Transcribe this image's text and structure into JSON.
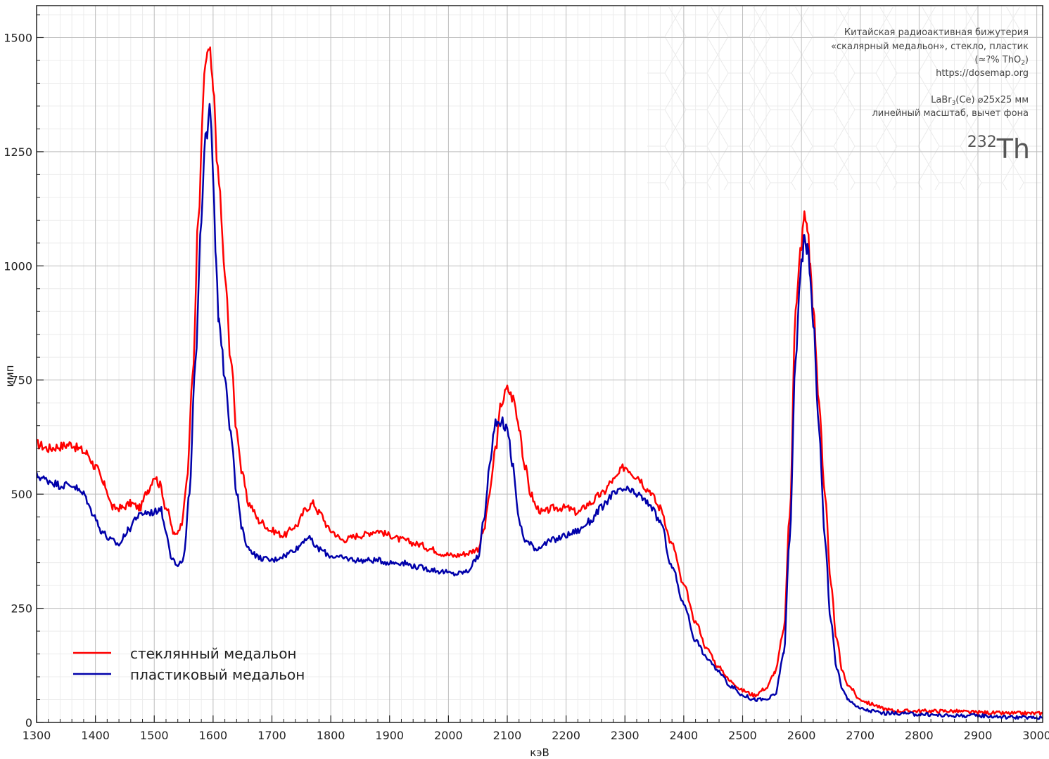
{
  "chart_data": {
    "type": "line",
    "xlabel": "кэВ",
    "ylabel": "имп",
    "xlim": [
      1300,
      3010
    ],
    "ylim": [
      0,
      1570
    ],
    "xticks": [
      1300,
      1400,
      1500,
      1600,
      1700,
      1800,
      1900,
      2000,
      2100,
      2200,
      2300,
      2400,
      2500,
      2600,
      2700,
      2800,
      2900,
      3000
    ],
    "yticks": [
      0,
      250,
      500,
      750,
      1000,
      1250,
      1500
    ],
    "grid": true,
    "legend_position": "bottom-left",
    "series": [
      {
        "name": "стеклянный медальон",
        "color": "#ff0000",
        "x": [
          1300,
          1320,
          1340,
          1360,
          1370,
          1385,
          1400,
          1415,
          1430,
          1445,
          1460,
          1475,
          1490,
          1500,
          1510,
          1520,
          1535,
          1545,
          1555,
          1565,
          1575,
          1585,
          1590,
          1595,
          1600,
          1610,
          1620,
          1630,
          1640,
          1650,
          1660,
          1680,
          1700,
          1720,
          1740,
          1760,
          1770,
          1780,
          1800,
          1820,
          1850,
          1880,
          1900,
          1920,
          1950,
          1970,
          1990,
          2010,
          2030,
          2050,
          2060,
          2070,
          2080,
          2090,
          2100,
          2110,
          2120,
          2130,
          2140,
          2150,
          2160,
          2180,
          2200,
          2220,
          2240,
          2260,
          2280,
          2300,
          2320,
          2340,
          2360,
          2380,
          2400,
          2420,
          2440,
          2460,
          2480,
          2500,
          2520,
          2540,
          2555,
          2570,
          2580,
          2590,
          2600,
          2605,
          2610,
          2615,
          2620,
          2630,
          2640,
          2650,
          2660,
          2670,
          2680,
          2700,
          2720,
          2740,
          2760,
          2800,
          2850,
          2900,
          2950,
          3010
        ],
        "y": [
          610,
          600,
          605,
          610,
          600,
          590,
          560,
          520,
          470,
          470,
          480,
          470,
          510,
          540,
          520,
          470,
          410,
          430,
          520,
          750,
          1100,
          1400,
          1470,
          1460,
          1380,
          1180,
          980,
          800,
          640,
          540,
          480,
          440,
          420,
          410,
          430,
          470,
          480,
          460,
          420,
          400,
          410,
          420,
          410,
          400,
          390,
          380,
          370,
          365,
          370,
          380,
          420,
          500,
          600,
          700,
          730,
          710,
          650,
          560,
          500,
          470,
          460,
          470,
          470,
          460,
          480,
          500,
          530,
          560,
          540,
          510,
          470,
          390,
          300,
          220,
          160,
          120,
          90,
          70,
          60,
          75,
          110,
          200,
          450,
          900,
          1050,
          1110,
          1090,
          1000,
          900,
          700,
          500,
          300,
          180,
          110,
          80,
          50,
          40,
          30,
          25,
          25,
          25,
          22,
          20,
          20
        ]
      },
      {
        "name": "пластиковый медальон",
        "color": "#0000aa",
        "x": [
          1300,
          1320,
          1340,
          1360,
          1380,
          1395,
          1410,
          1425,
          1440,
          1455,
          1470,
          1485,
          1500,
          1510,
          1520,
          1530,
          1540,
          1550,
          1560,
          1570,
          1580,
          1585,
          1590,
          1595,
          1600,
          1605,
          1610,
          1620,
          1630,
          1640,
          1650,
          1660,
          1680,
          1700,
          1720,
          1740,
          1760,
          1780,
          1800,
          1820,
          1850,
          1880,
          1900,
          1920,
          1950,
          1970,
          1990,
          2010,
          2030,
          2050,
          2060,
          2070,
          2080,
          2090,
          2100,
          2110,
          2120,
          2130,
          2140,
          2150,
          2160,
          2180,
          2200,
          2220,
          2240,
          2260,
          2280,
          2300,
          2320,
          2340,
          2360,
          2380,
          2400,
          2420,
          2440,
          2460,
          2480,
          2500,
          2520,
          2540,
          2555,
          2570,
          2580,
          2590,
          2600,
          2605,
          2610,
          2615,
          2620,
          2630,
          2640,
          2650,
          2660,
          2670,
          2680,
          2700,
          2720,
          2740,
          2760,
          2800,
          2850,
          2900,
          2950,
          3010
        ],
        "y": [
          540,
          530,
          520,
          520,
          500,
          460,
          420,
          400,
          390,
          420,
          450,
          460,
          460,
          470,
          420,
          360,
          340,
          360,
          500,
          800,
          1100,
          1250,
          1300,
          1340,
          1200,
          1000,
          880,
          760,
          640,
          500,
          420,
          380,
          360,
          355,
          365,
          380,
          405,
          380,
          365,
          360,
          355,
          355,
          350,
          350,
          340,
          335,
          330,
          325,
          330,
          360,
          440,
          560,
          660,
          660,
          640,
          560,
          440,
          400,
          390,
          380,
          390,
          400,
          410,
          420,
          440,
          470,
          500,
          510,
          500,
          480,
          440,
          340,
          260,
          180,
          140,
          110,
          80,
          60,
          50,
          50,
          60,
          150,
          400,
          800,
          1000,
          1060,
          1040,
          980,
          880,
          640,
          400,
          220,
          120,
          70,
          50,
          30,
          25,
          20,
          20,
          18,
          15,
          15,
          12,
          10
        ]
      }
    ]
  },
  "annotation": {
    "lines": [
      "Китайская радиоактивная бижутерия",
      "«скалярный медальон», стекло, пластик",
      "(≈?% ThO",
      "https://dosemap.org",
      "LaBr",
      "(Ce) ⌀25x25 мм",
      "линейный масштаб, вычет фона"
    ],
    "sub_2": "2",
    "sub_close": ")",
    "sub_3": "3",
    "isotope_mass": "232",
    "isotope_symbol": "Th"
  }
}
